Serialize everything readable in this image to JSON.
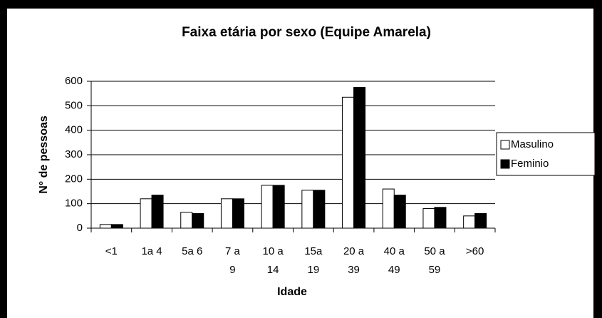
{
  "chart_data": {
    "type": "bar",
    "title": "Faixa etária por sexo (Equipe Amarela)",
    "x_label": "Idade",
    "y_label": "N° de pessoas",
    "categories": [
      "<1",
      "1a 4",
      "5a 6",
      "7 a\n9",
      "10 a\n14",
      "15a\n19",
      "20 a\n39",
      "40 a\n49",
      "50 a\n59",
      ">60"
    ],
    "series": [
      {
        "name": "Masulino",
        "color": "#ffffff",
        "values": [
          15,
          120,
          65,
          120,
          175,
          155,
          535,
          160,
          80,
          50
        ]
      },
      {
        "name": "Feminio",
        "color": "#000000",
        "values": [
          15,
          135,
          60,
          120,
          175,
          155,
          575,
          135,
          85,
          60
        ]
      }
    ],
    "ylim": [
      0,
      600
    ],
    "yticks": [
      0,
      100,
      200,
      300,
      400,
      500,
      600
    ],
    "grid": true,
    "legend": "right"
  }
}
